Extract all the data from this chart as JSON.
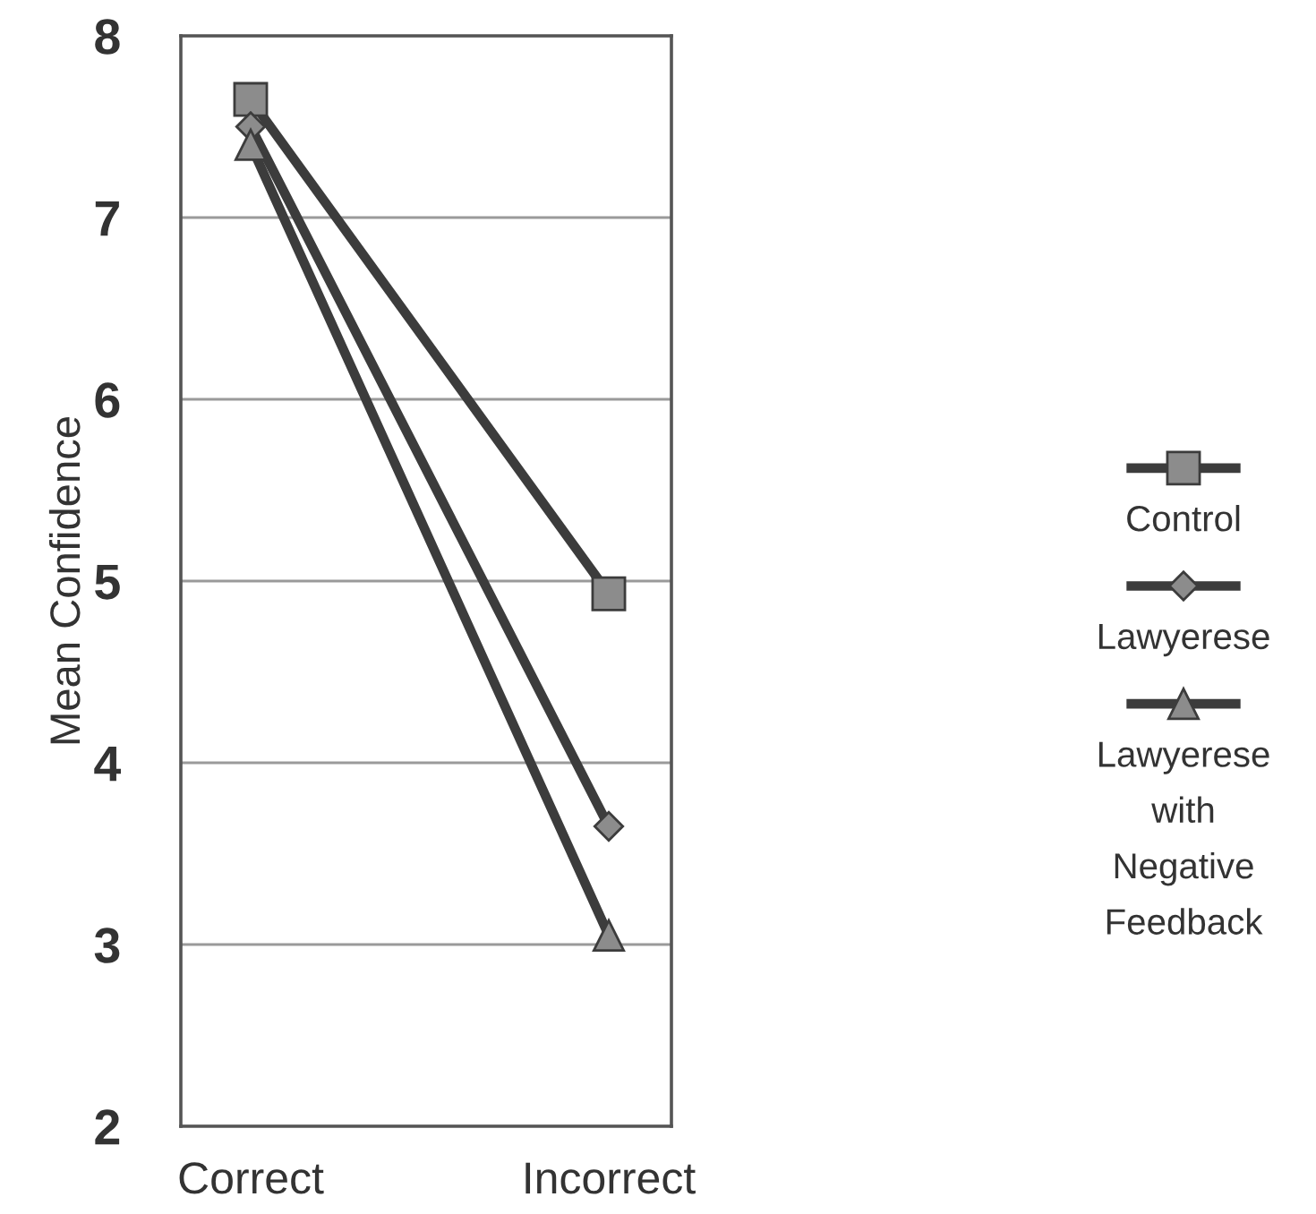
{
  "chart_data": {
    "type": "line",
    "ylabel": "Mean Confidence",
    "categories": [
      "Correct",
      "Incorrect"
    ],
    "series": [
      {
        "name": "Control",
        "color": "#3c3c3c",
        "marker": "square",
        "values": [
          7.65,
          4.93
        ]
      },
      {
        "name": "Lawyerese",
        "color": "#3c3c3c",
        "marker": "diamond",
        "values": [
          7.5,
          3.65
        ]
      },
      {
        "name": "Lawyerese with Negative Feedback",
        "color": "#3c3c3c",
        "marker": "triangle",
        "values": [
          7.4,
          3.05
        ]
      }
    ],
    "ylim": [
      2,
      8
    ],
    "yticks": [
      2,
      3,
      4,
      5,
      6,
      7,
      8
    ],
    "grid": "y",
    "legend": "right",
    "line_style": "solid"
  }
}
